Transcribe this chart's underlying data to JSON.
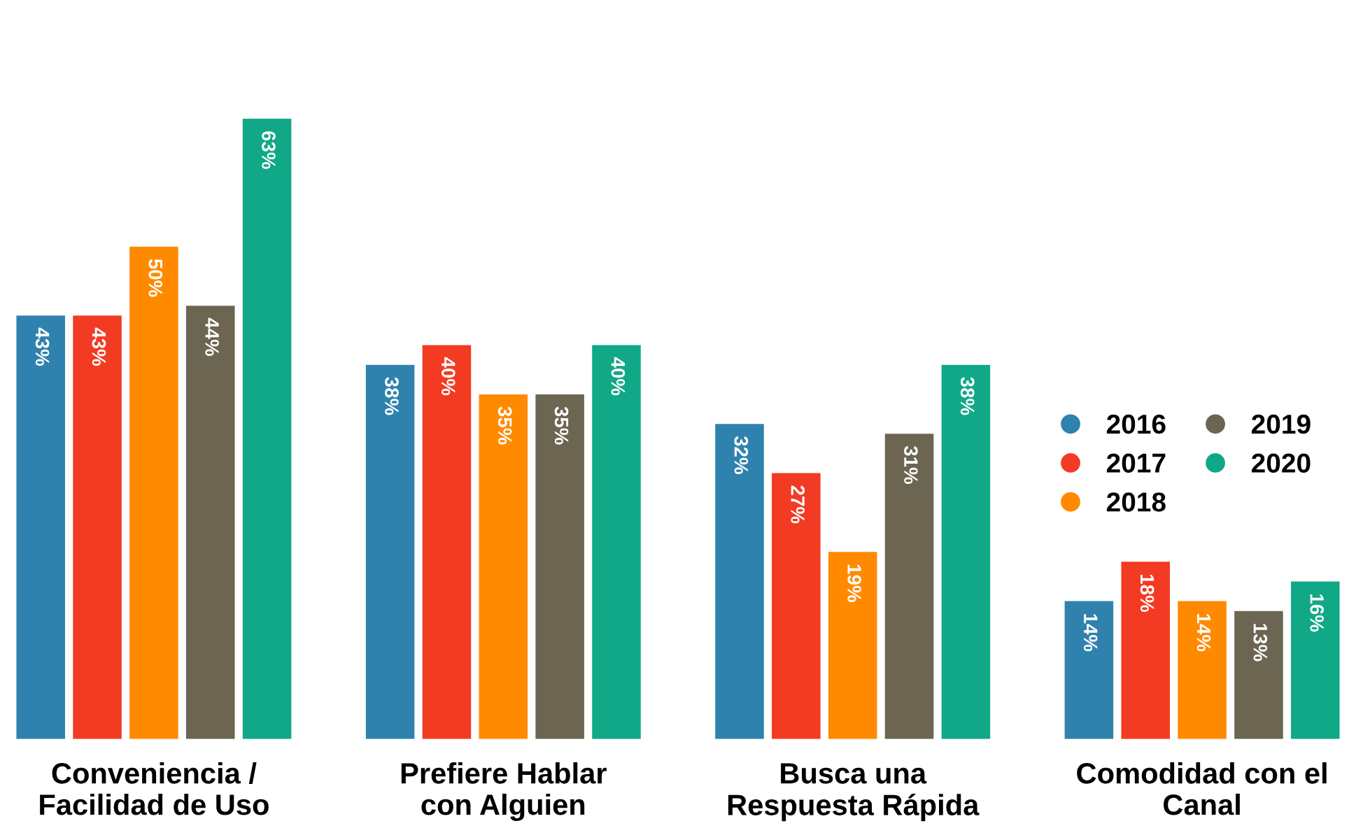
{
  "chart_data": {
    "type": "bar",
    "categories": [
      "Conveniencia /\nFacilidad de Uso",
      "Prefiere Hablar\ncon Alguien",
      "Busca una\nRespuesta Rápida",
      "Comodidad con el\nCanal"
    ],
    "series": [
      {
        "name": "2016",
        "color": "#2f82ad",
        "values": [
          43,
          38,
          32,
          14
        ],
        "value_labels": [
          "43%",
          "38%",
          "32%",
          "14%"
        ]
      },
      {
        "name": "2017",
        "color": "#f23b22",
        "values": [
          43,
          40,
          27,
          18
        ],
        "value_labels": [
          "43%",
          "40%",
          "27%",
          "18%"
        ]
      },
      {
        "name": "2018",
        "color": "#ff8a00",
        "values": [
          50,
          35,
          19,
          14
        ],
        "value_labels": [
          "50%",
          "35%",
          "19%",
          "14%"
        ]
      },
      {
        "name": "2019",
        "color": "#6b6551",
        "values": [
          44,
          35,
          31,
          13
        ],
        "value_labels": [
          "44%",
          "35%",
          "31%",
          "13%"
        ]
      },
      {
        "name": "2020",
        "color": "#10a887",
        "values": [
          63,
          40,
          38,
          16
        ],
        "value_labels": [
          "63%",
          "40%",
          "38%",
          "16%"
        ]
      }
    ],
    "legend": "right",
    "grid": false
  }
}
